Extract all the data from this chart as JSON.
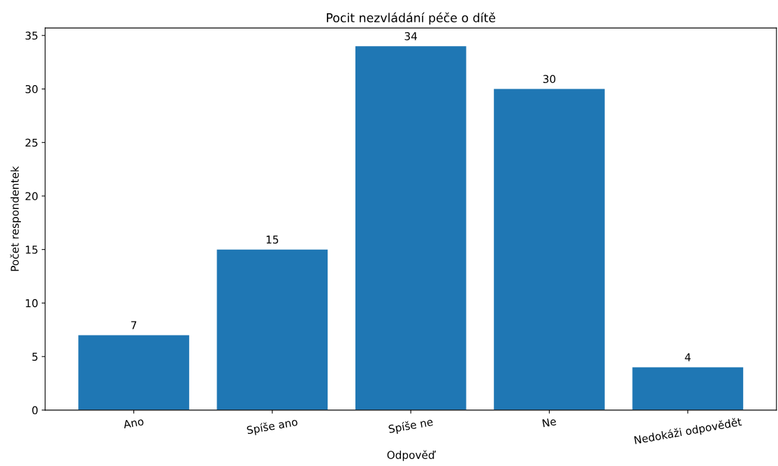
{
  "chart_data": {
    "type": "bar",
    "title": "Pocit nezvládání péče o dítě",
    "xlabel": "Odpověď",
    "ylabel": "Počet respondentek",
    "categories": [
      "Ano",
      "Spíše ano",
      "Spíše ne",
      "Ne",
      "Nedokáži odpovědět"
    ],
    "values": [
      7,
      15,
      34,
      30,
      4
    ],
    "color": "#1f77b4",
    "ylim": [
      0,
      35.7
    ],
    "yticks": [
      0,
      5,
      10,
      15,
      20,
      25,
      30,
      35
    ],
    "data_labels": true,
    "grid": false
  }
}
